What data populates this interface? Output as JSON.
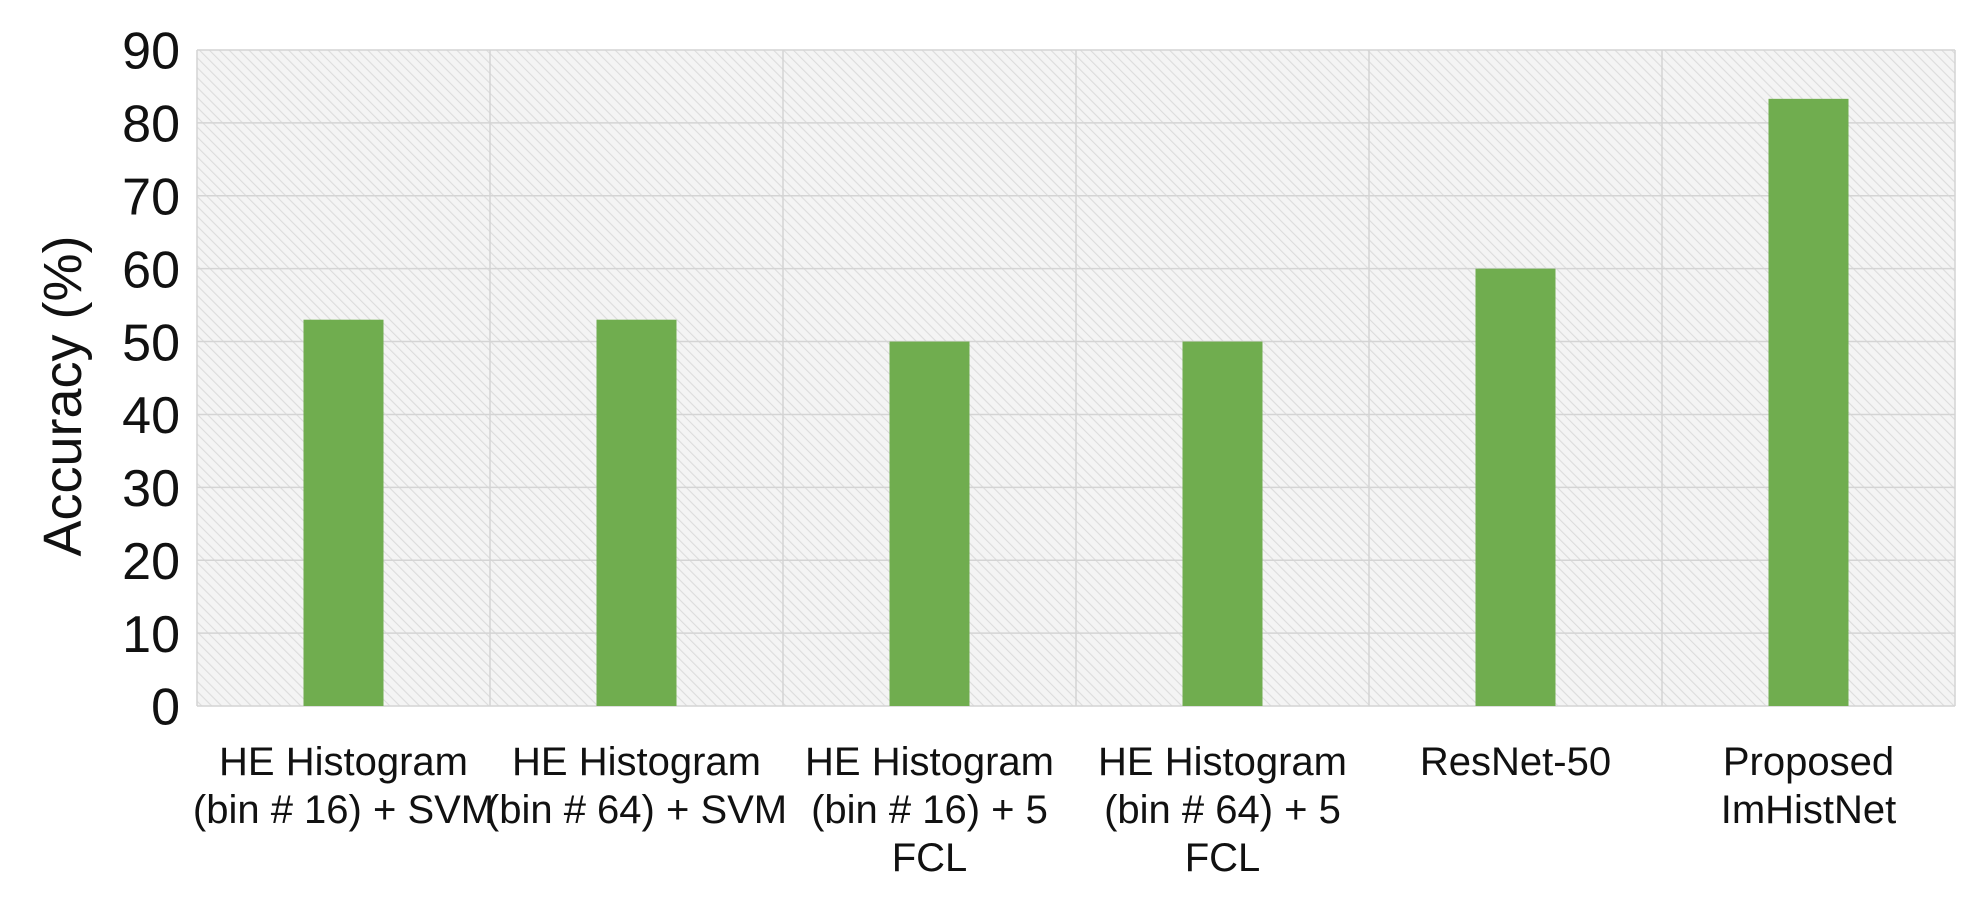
{
  "chart_data": {
    "type": "bar",
    "ylabel": "Accuracy (%)",
    "xlabel": "",
    "ylim": [
      0,
      90
    ],
    "yticks": [
      0,
      10,
      20,
      30,
      40,
      50,
      60,
      70,
      80,
      90
    ],
    "grid": true,
    "categories": [
      [
        "HE Histogram",
        "(bin # 16) + SVM"
      ],
      [
        "HE Histogram",
        "(bin # 64) + SVM"
      ],
      [
        "HE Histogram",
        "(bin # 16) + 5",
        "FCL"
      ],
      [
        "HE Histogram",
        "(bin # 64) + 5",
        "FCL"
      ],
      [
        "ResNet-50"
      ],
      [
        "Proposed",
        "ImHistNet"
      ]
    ],
    "values": [
      53,
      53,
      50,
      50,
      60,
      83.3
    ],
    "bar_color": "#70ad4f"
  }
}
